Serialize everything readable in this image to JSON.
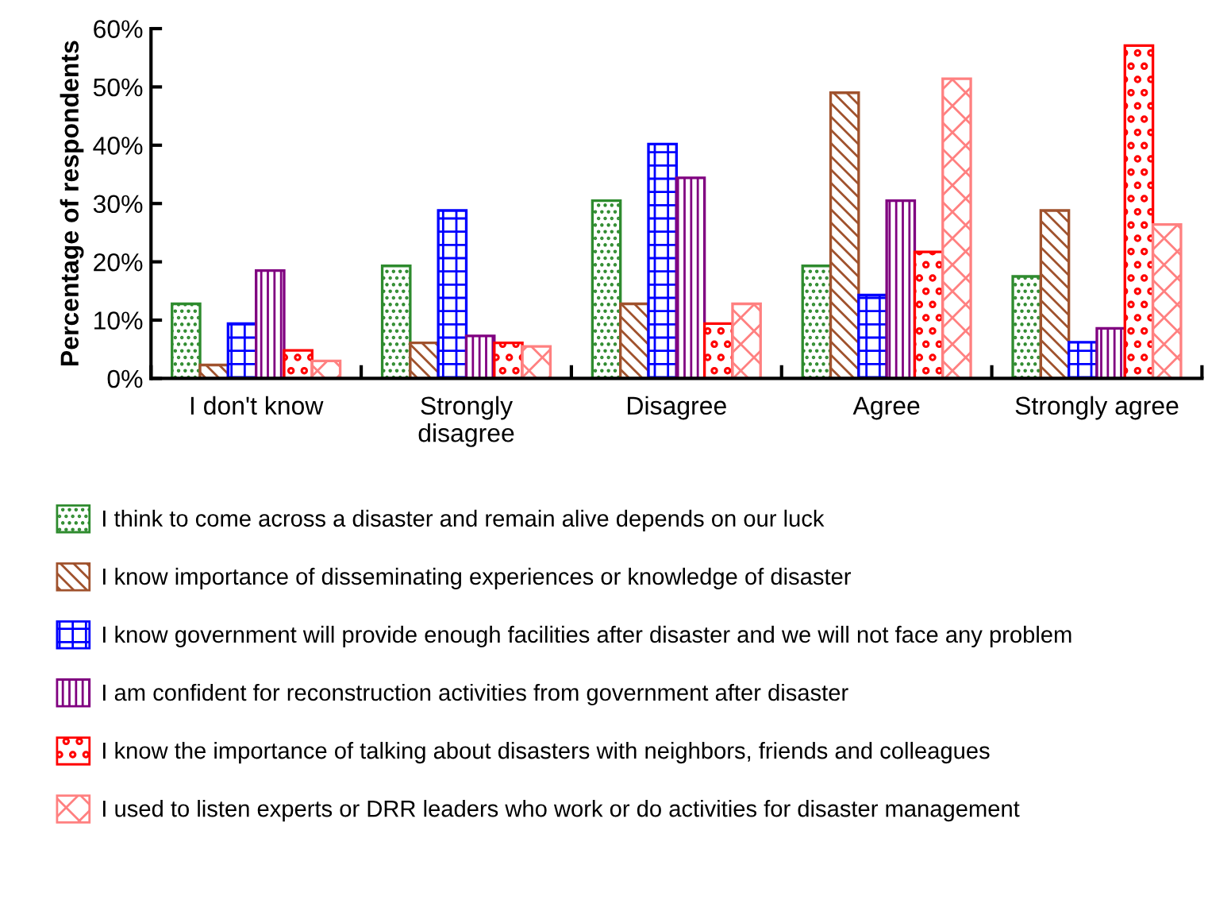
{
  "chart_data": {
    "type": "bar",
    "ylabel": "Percentage of respondents",
    "categories": [
      "I don't know",
      "Strongly\ndisagree",
      "Disagree",
      "Agree",
      "Strongly agree"
    ],
    "series": [
      {
        "name": "I think to come across a disaster and remain alive depends on our luck",
        "color": "#2e8b2e",
        "values": [
          12.8,
          19.3,
          30.5,
          19.3,
          17.5
        ]
      },
      {
        "name": "I know importance of disseminating experiences or knowledge of disaster",
        "color": "#a0522d",
        "values": [
          2.3,
          6.1,
          12.8,
          49.0,
          28.8
        ]
      },
      {
        "name": "I know government will provide enough facilities after disaster and we will not face any problem",
        "color": "#0000ff",
        "values": [
          9.4,
          28.8,
          40.2,
          14.3,
          6.2
        ]
      },
      {
        "name": "I am confident for reconstruction activities from government after disaster",
        "color": "#800080",
        "values": [
          18.5,
          7.3,
          34.4,
          30.5,
          8.6
        ]
      },
      {
        "name": "I know the importance of talking about disasters with neighbors, friends and colleagues",
        "color": "#ff0000",
        "values": [
          4.8,
          6.1,
          9.4,
          21.7,
          57.1
        ]
      },
      {
        "name": "I used to listen experts or DRR leaders who work or do activities for disaster management",
        "color": "#ff8080",
        "values": [
          3.0,
          5.5,
          12.8,
          51.4,
          26.4
        ]
      }
    ],
    "ylim": [
      0,
      60
    ],
    "yticks": [
      {
        "value": 0,
        "label": "0%"
      },
      {
        "value": 10,
        "label": "10%"
      },
      {
        "value": 20,
        "label": "20%"
      },
      {
        "value": 30,
        "label": "30%"
      },
      {
        "value": 40,
        "label": "40%"
      },
      {
        "value": 50,
        "label": "50%"
      },
      {
        "value": 60,
        "label": "60%"
      }
    ],
    "grid": false,
    "legend": "bottom"
  }
}
